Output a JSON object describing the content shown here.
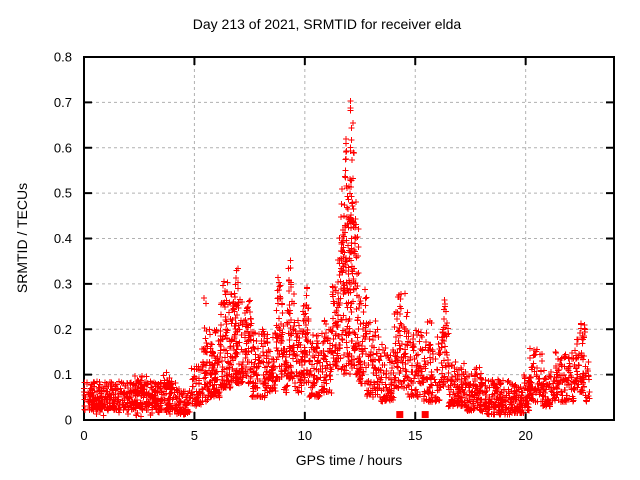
{
  "page": {
    "background": "#ffffff"
  },
  "chart_data": {
    "type": "scatter",
    "title": "Day 213 of 2021, SRMTID for receiver elda",
    "xlabel": "GPS time / hours",
    "ylabel": "SRMTID / TECUs",
    "xlim": [
      0,
      24
    ],
    "ylim": [
      0,
      0.8
    ],
    "xtick_values": [
      0,
      5,
      10,
      15,
      20
    ],
    "xtick_labels": [
      "0",
      "5",
      "10",
      "15",
      "20"
    ],
    "ytick_values": [
      0,
      0.1,
      0.2,
      0.3,
      0.4,
      0.5,
      0.6,
      0.7,
      0.8
    ],
    "ytick_labels": [
      "0",
      "0.1",
      "0.2",
      "0.3",
      "0.4",
      "0.5",
      "0.6",
      "0.7",
      "0.8"
    ],
    "grid": {
      "style": "dashed",
      "color": "#b1b1b1"
    },
    "frame_color": "#000000",
    "marker": {
      "shape": "plus",
      "size": 7,
      "color": "#ff0000"
    },
    "seed": 7,
    "max_observed_value": 0.7,
    "point_cloud_segments": [
      [
        0.0,
        4.2,
        430,
        0.022,
        0.085,
        1.4
      ],
      [
        0.0,
        4.2,
        50,
        0.008,
        0.04,
        1.0
      ],
      [
        2.3,
        2.85,
        18,
        0.055,
        0.1,
        1.0
      ],
      [
        3.55,
        4.0,
        16,
        0.055,
        0.105,
        1.0
      ],
      [
        4.2,
        4.85,
        70,
        0.012,
        0.07,
        1.5
      ],
      [
        4.85,
        5.35,
        55,
        0.03,
        0.12,
        1.3
      ],
      [
        5.35,
        5.65,
        40,
        0.04,
        0.17,
        1.4
      ],
      [
        5.42,
        5.58,
        6,
        0.17,
        0.27,
        1.0
      ],
      [
        5.65,
        6.15,
        80,
        0.05,
        0.2,
        1.5
      ],
      [
        6.15,
        6.65,
        80,
        0.07,
        0.26,
        1.4
      ],
      [
        6.3,
        6.5,
        8,
        0.22,
        0.315,
        1.0
      ],
      [
        6.65,
        7.2,
        100,
        0.08,
        0.28,
        1.4
      ],
      [
        6.85,
        7.1,
        10,
        0.24,
        0.335,
        1.0
      ],
      [
        7.2,
        7.6,
        55,
        0.08,
        0.25,
        1.4
      ],
      [
        7.35,
        7.55,
        5,
        0.2,
        0.275,
        1.0
      ],
      [
        7.6,
        8.3,
        95,
        0.05,
        0.2,
        1.5
      ],
      [
        8.3,
        8.7,
        50,
        0.06,
        0.2,
        1.4
      ],
      [
        8.7,
        9.05,
        50,
        0.09,
        0.27,
        1.3
      ],
      [
        8.75,
        8.95,
        8,
        0.25,
        0.32,
        1.0
      ],
      [
        9.05,
        9.25,
        25,
        0.06,
        0.18,
        1.4
      ],
      [
        9.2,
        9.55,
        50,
        0.09,
        0.29,
        1.3
      ],
      [
        9.25,
        9.45,
        8,
        0.28,
        0.36,
        1.0
      ],
      [
        9.55,
        9.85,
        40,
        0.06,
        0.22,
        1.4
      ],
      [
        9.85,
        10.2,
        55,
        0.08,
        0.26,
        1.3
      ],
      [
        9.95,
        10.15,
        6,
        0.22,
        0.3,
        1.0
      ],
      [
        10.2,
        10.8,
        75,
        0.05,
        0.2,
        1.5
      ],
      [
        10.8,
        11.25,
        60,
        0.06,
        0.22,
        1.4
      ],
      [
        11.25,
        11.5,
        45,
        0.1,
        0.3,
        1.2
      ],
      [
        11.5,
        12.45,
        170,
        0.1,
        0.45,
        1.3
      ],
      [
        11.65,
        12.35,
        55,
        0.28,
        0.52,
        1.1
      ],
      [
        11.8,
        12.25,
        24,
        0.44,
        0.6,
        1.0
      ],
      [
        11.85,
        12.2,
        10,
        0.56,
        0.66,
        1.0
      ],
      [
        11.95,
        12.1,
        3,
        0.68,
        0.705,
        1.0
      ],
      [
        12.45,
        12.8,
        55,
        0.08,
        0.3,
        1.4
      ],
      [
        12.8,
        13.4,
        70,
        0.05,
        0.22,
        1.5
      ],
      [
        13.4,
        14.05,
        75,
        0.04,
        0.17,
        1.5
      ],
      [
        14.05,
        14.65,
        70,
        0.07,
        0.24,
        1.3
      ],
      [
        14.2,
        14.55,
        10,
        0.2,
        0.3,
        1.0
      ],
      [
        14.65,
        15.4,
        85,
        0.05,
        0.2,
        1.5
      ],
      [
        15.4,
        16.1,
        80,
        0.04,
        0.19,
        1.5
      ],
      [
        15.5,
        15.85,
        6,
        0.16,
        0.22,
        1.0
      ],
      [
        16.1,
        16.5,
        45,
        0.07,
        0.22,
        1.3
      ],
      [
        16.25,
        16.45,
        10,
        0.18,
        0.275,
        1.0
      ],
      [
        16.5,
        17.3,
        100,
        0.03,
        0.13,
        1.5
      ],
      [
        17.3,
        18.0,
        95,
        0.02,
        0.12,
        1.5
      ],
      [
        18.0,
        19.3,
        150,
        0.012,
        0.09,
        1.5
      ],
      [
        19.3,
        19.9,
        70,
        0.015,
        0.08,
        1.5
      ],
      [
        19.9,
        20.15,
        30,
        0.02,
        0.1,
        1.3
      ],
      [
        20.15,
        20.75,
        65,
        0.04,
        0.16,
        1.3
      ],
      [
        20.75,
        21.3,
        60,
        0.03,
        0.11,
        1.4
      ],
      [
        21.3,
        22.2,
        95,
        0.04,
        0.15,
        1.4
      ],
      [
        22.2,
        22.65,
        55,
        0.06,
        0.18,
        1.2
      ],
      [
        22.45,
        22.7,
        12,
        0.18,
        0.215,
        1.0
      ],
      [
        22.65,
        22.9,
        18,
        0.04,
        0.13,
        1.2
      ]
    ],
    "square_markers": [
      [
        14.3,
        0.012
      ],
      [
        15.45,
        0.012
      ]
    ]
  }
}
